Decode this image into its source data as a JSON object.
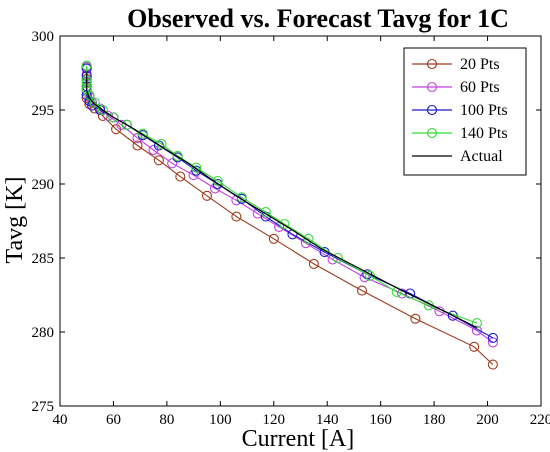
{
  "chart_data": {
    "type": "line",
    "title": "Observed vs. Forecast Tavg for 1C",
    "xlabel": "Current [A]",
    "ylabel": "Tavg [K]",
    "xlim": [
      40,
      220
    ],
    "ylim": [
      275,
      300
    ],
    "xticks": [
      40,
      60,
      80,
      100,
      120,
      140,
      160,
      180,
      200,
      220
    ],
    "yticks": [
      275,
      280,
      285,
      290,
      295,
      300
    ],
    "xtick_labels": [
      "40",
      "60",
      "80",
      "100",
      "120",
      "140",
      "160",
      "180",
      "200",
      "220"
    ],
    "ytick_labels": [
      "275",
      "280",
      "285",
      "290",
      "295",
      "300"
    ],
    "grid": false,
    "legend_position": "top-right",
    "series": [
      {
        "name": "20 Pts",
        "color": "#a0391b",
        "marker": "circle",
        "x": [
          50,
          50,
          50,
          50,
          51,
          53,
          56,
          61,
          69,
          77,
          85,
          95,
          106,
          120,
          135,
          153,
          173,
          195,
          202
        ],
        "y": [
          297.9,
          297.1,
          296.4,
          295.8,
          295.4,
          295.1,
          294.6,
          293.7,
          292.6,
          291.6,
          290.5,
          289.2,
          287.8,
          286.3,
          284.6,
          282.8,
          280.9,
          279.0,
          277.8
        ]
      },
      {
        "name": "60 Pts",
        "color": "#c040e0",
        "marker": "circle",
        "x": [
          50,
          50,
          50,
          50,
          51,
          52,
          55,
          58,
          63,
          69,
          75,
          82,
          90,
          98,
          106,
          114,
          122,
          132,
          142,
          154,
          168,
          182,
          196,
          202
        ],
        "y": [
          297.9,
          297.4,
          296.9,
          296.3,
          295.9,
          295.5,
          295.1,
          294.6,
          294.0,
          293.1,
          292.3,
          291.4,
          290.6,
          289.7,
          288.9,
          288.0,
          287.1,
          286.0,
          284.9,
          283.7,
          282.6,
          281.4,
          280.1,
          279.3
        ]
      },
      {
        "name": "100 Pts",
        "color": "#1a1acc",
        "marker": "circle",
        "x": [
          50,
          50,
          50,
          50,
          51,
          52,
          55,
          60,
          65,
          71,
          77,
          84,
          91,
          99,
          108,
          117,
          127,
          139,
          155,
          171,
          187,
          202
        ],
        "y": [
          297.8,
          297.3,
          296.6,
          296.0,
          295.6,
          295.3,
          295.0,
          294.5,
          294.0,
          293.3,
          292.6,
          291.8,
          290.9,
          290.0,
          289.0,
          287.8,
          286.6,
          285.4,
          283.9,
          282.6,
          281.1,
          279.6
        ]
      },
      {
        "name": "140 Pts",
        "color": "#33dd33",
        "marker": "circle",
        "x": [
          50,
          50,
          50,
          50,
          51,
          53,
          56,
          60,
          65,
          71,
          78,
          84,
          91,
          99,
          108,
          117,
          124,
          133,
          144,
          156,
          166,
          178,
          196
        ],
        "y": [
          298.0,
          297.0,
          296.8,
          296.4,
          296.0,
          295.5,
          295.0,
          294.5,
          294.0,
          293.4,
          292.7,
          291.9,
          291.1,
          290.2,
          289.1,
          288.1,
          287.3,
          286.3,
          285.0,
          283.8,
          282.7,
          281.8,
          280.6
        ]
      },
      {
        "name": "Actual",
        "color": "#000000",
        "marker": "none",
        "x": [
          50,
          50,
          51,
          53,
          56,
          60,
          66,
          73,
          80,
          88,
          96,
          105,
          115,
          126,
          138,
          152,
          168,
          185,
          196
        ],
        "y": [
          297.6,
          296.3,
          295.8,
          295.4,
          295.0,
          294.5,
          293.9,
          293.1,
          292.3,
          291.4,
          290.4,
          289.3,
          288.2,
          287.0,
          285.6,
          284.3,
          282.8,
          281.3,
          280.3
        ]
      }
    ]
  }
}
